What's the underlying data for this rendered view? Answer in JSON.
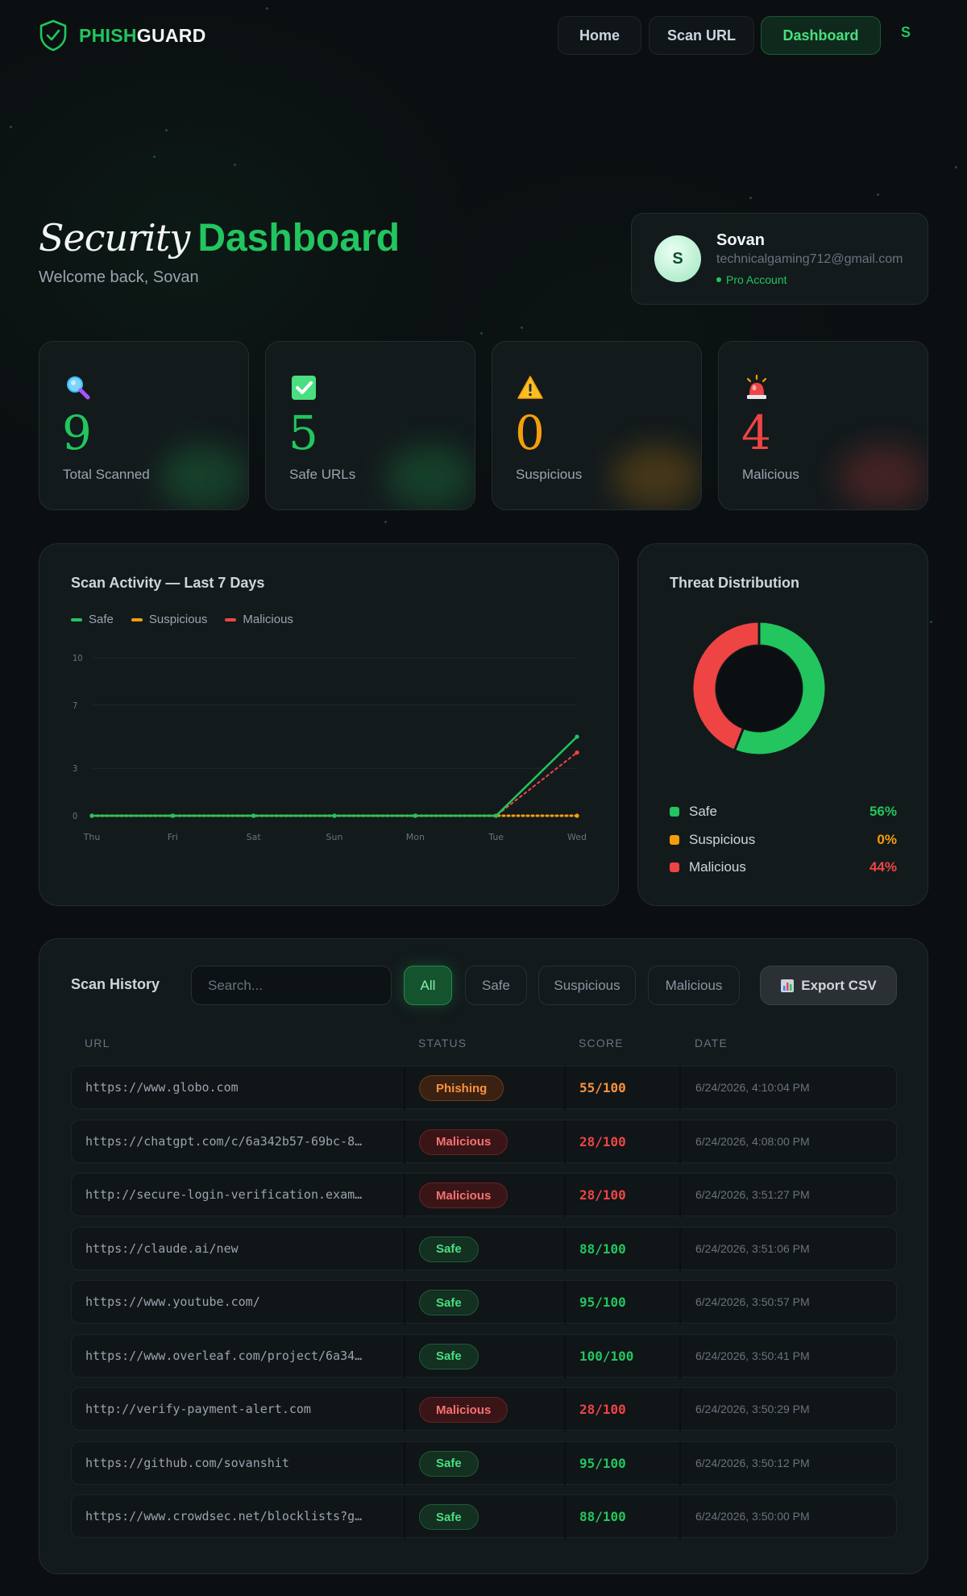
{
  "brand": {
    "part1": "PHISH",
    "part2": "GUARD"
  },
  "nav": {
    "home": "Home",
    "scan": "Scan URL",
    "dashboard": "Dashboard",
    "avatar": "S"
  },
  "hero": {
    "title_italic": "Security",
    "title_bold": "Dashboard",
    "subtitle": "Welcome back, Sovan"
  },
  "profile": {
    "initial": "S",
    "name": "Sovan",
    "email": "technicalgaming712@gmail.com",
    "plan": "Pro Account"
  },
  "stats": [
    {
      "icon": "magnifier-icon",
      "value": "9",
      "label": "Total Scanned",
      "color": "#22c55e"
    },
    {
      "icon": "checkmark-icon",
      "value": "5",
      "label": "Safe URLs",
      "color": "#22c55e"
    },
    {
      "icon": "warning-icon",
      "value": "0",
      "label": "Suspicious",
      "color": "#f59e0b"
    },
    {
      "icon": "siren-icon",
      "value": "4",
      "label": "Malicious",
      "color": "#ef4444"
    }
  ],
  "activity": {
    "title": "Scan Activity — Last 7 Days",
    "legend": {
      "safe": "Safe",
      "suspicious": "Suspicious",
      "malicious": "Malicious"
    }
  },
  "chart_data": {
    "type": "line",
    "title": "Scan Activity — Last 7 Days",
    "x": [
      "Thu",
      "Fri",
      "Sat",
      "Sun",
      "Mon",
      "Tue",
      "Wed"
    ],
    "yticks": [
      0,
      3,
      7,
      10
    ],
    "ylim": [
      0,
      10
    ],
    "series": [
      {
        "name": "Safe",
        "color": "#22c55e",
        "values": [
          0,
          0,
          0,
          0,
          0,
          0,
          5
        ]
      },
      {
        "name": "Suspicious",
        "color": "#f59e0b",
        "values": [
          0,
          0,
          0,
          0,
          0,
          0,
          0
        ]
      },
      {
        "name": "Malicious",
        "color": "#ef4444",
        "values": [
          0,
          0,
          0,
          0,
          0,
          0,
          4
        ]
      }
    ],
    "legend": "top-left",
    "grid": true
  },
  "distribution": {
    "title": "Threat Distribution",
    "items": [
      {
        "label": "Safe",
        "pct": "56%",
        "value": 56,
        "color": "#22c55e"
      },
      {
        "label": "Suspicious",
        "pct": "0%",
        "value": 0,
        "color": "#f59e0b"
      },
      {
        "label": "Malicious",
        "pct": "44%",
        "value": 44,
        "color": "#ef4444"
      }
    ]
  },
  "history": {
    "title": "Scan History",
    "search_placeholder": "Search...",
    "filters": [
      "All",
      "Safe",
      "Suspicious",
      "Malicious"
    ],
    "export_label": "Export CSV",
    "columns": [
      "URL",
      "STATUS",
      "SCORE",
      "DATE"
    ],
    "rows": [
      {
        "url": "https://www.globo.com",
        "status": "Phishing",
        "kind": "phish",
        "score": "55/100",
        "date": "6/24/2026, 4:10:04 PM"
      },
      {
        "url": "https://chatgpt.com/c/6a342b57-69bc-8…",
        "status": "Malicious",
        "kind": "mal",
        "score": "28/100",
        "date": "6/24/2026, 4:08:00 PM"
      },
      {
        "url": "http://secure-login-verification.exam…",
        "status": "Malicious",
        "kind": "mal",
        "score": "28/100",
        "date": "6/24/2026, 3:51:27 PM"
      },
      {
        "url": "https://claude.ai/new",
        "status": "Safe",
        "kind": "safe",
        "score": "88/100",
        "date": "6/24/2026, 3:51:06 PM"
      },
      {
        "url": "https://www.youtube.com/",
        "status": "Safe",
        "kind": "safe",
        "score": "95/100",
        "date": "6/24/2026, 3:50:57 PM"
      },
      {
        "url": "https://www.overleaf.com/project/6a34…",
        "status": "Safe",
        "kind": "safe",
        "score": "100/100",
        "date": "6/24/2026, 3:50:41 PM"
      },
      {
        "url": "http://verify-payment-alert.com",
        "status": "Malicious",
        "kind": "mal",
        "score": "28/100",
        "date": "6/24/2026, 3:50:29 PM"
      },
      {
        "url": "https://github.com/sovanshit",
        "status": "Safe",
        "kind": "safe",
        "score": "95/100",
        "date": "6/24/2026, 3:50:12 PM"
      },
      {
        "url": "https://www.crowdsec.net/blocklists?g…",
        "status": "Safe",
        "kind": "safe",
        "score": "88/100",
        "date": "6/24/2026, 3:50:00 PM"
      }
    ]
  }
}
